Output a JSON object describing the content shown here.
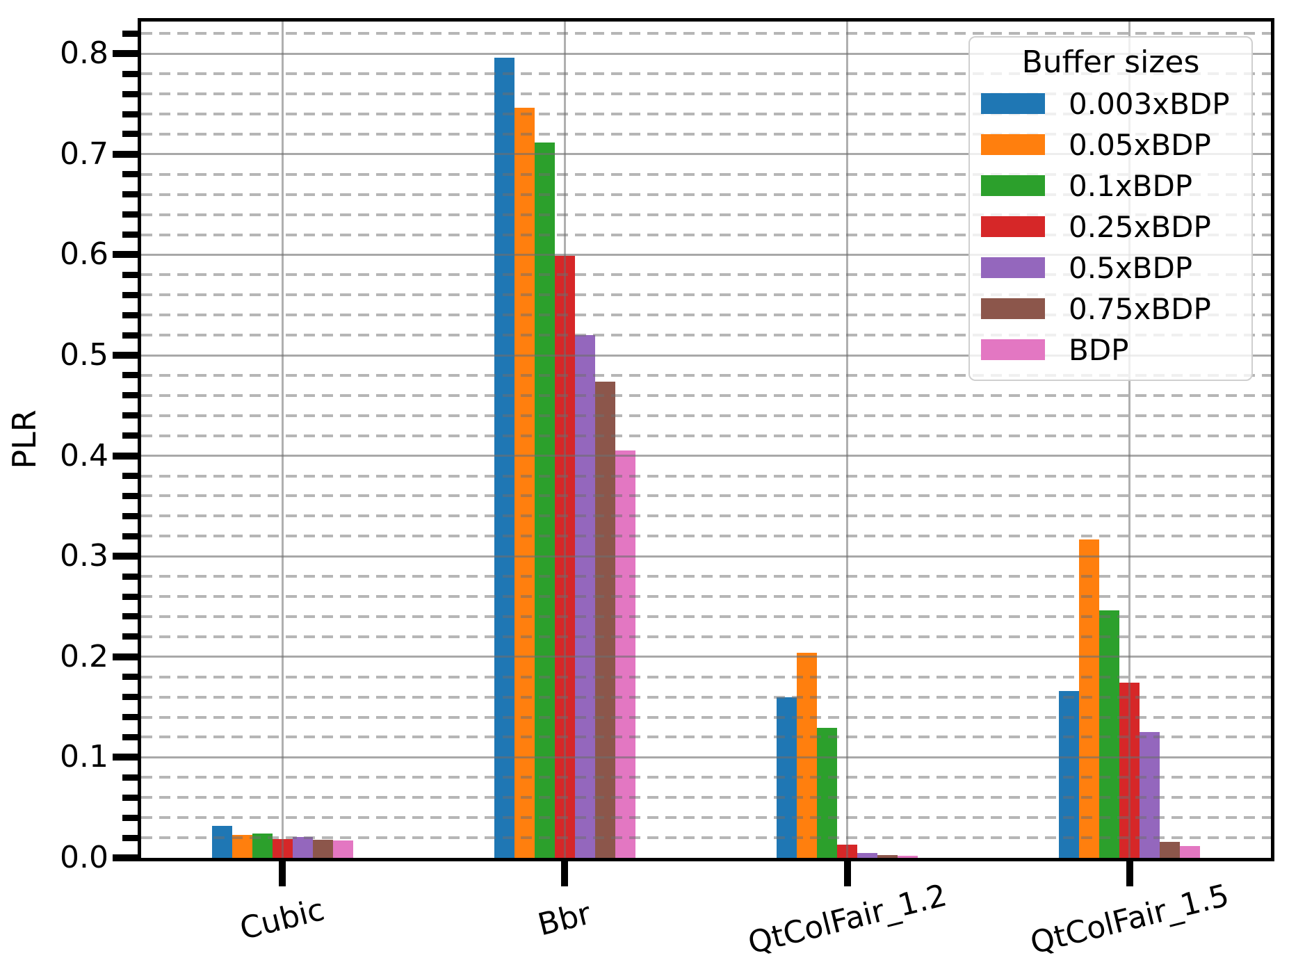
{
  "chart_data": {
    "type": "bar",
    "title": "",
    "xlabel": "",
    "ylabel": "PLR",
    "categories": [
      "Cubic",
      "Bbr",
      "QtColFair_1.2",
      "QtColFair_1.5"
    ],
    "series": [
      {
        "name": "0.003xBDP",
        "color": "#1f77b4",
        "values": [
          0.032,
          0.796,
          0.16,
          0.166
        ]
      },
      {
        "name": "0.05xBDP",
        "color": "#ff7f0e",
        "values": [
          0.023,
          0.746,
          0.204,
          0.317
        ]
      },
      {
        "name": "0.1xBDP",
        "color": "#2ca02c",
        "values": [
          0.024,
          0.712,
          0.129,
          0.246
        ]
      },
      {
        "name": "0.25xBDP",
        "color": "#d62728",
        "values": [
          0.019,
          0.599,
          0.013,
          0.174
        ]
      },
      {
        "name": "0.5xBDP",
        "color": "#9467bd",
        "values": [
          0.021,
          0.52,
          0.005,
          0.125
        ]
      },
      {
        "name": "0.75xBDP",
        "color": "#8c564b",
        "values": [
          0.018,
          0.474,
          0.003,
          0.016
        ]
      },
      {
        "name": "BDP",
        "color": "#e377c2",
        "values": [
          0.017,
          0.405,
          0.002,
          0.012
        ]
      }
    ],
    "ylim": [
      0,
      0.832
    ],
    "yticks": [
      "0.0",
      "0.1",
      "0.2",
      "0.3",
      "0.4",
      "0.5",
      "0.6",
      "0.7",
      "0.8"
    ],
    "ytick_major_step": 0.1,
    "ytick_minor_step": 0.02,
    "grid": {
      "major_style": "solid",
      "minor_style": "dashed",
      "above_bars": true,
      "color": "#a6a6a6"
    },
    "legend": {
      "title": "Buffer sizes",
      "position": "upper-right"
    }
  }
}
